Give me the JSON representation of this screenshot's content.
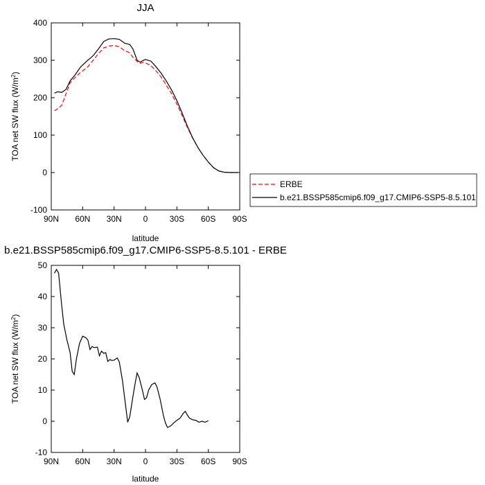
{
  "chart_data": [
    {
      "type": "line",
      "title": "JJA",
      "xlabel": "latitude",
      "ylabel": "TOA net SW flux (W/m",
      "ylabel_sup": "2",
      "ylabel_tail": ")",
      "xlim": [
        90,
        -90
      ],
      "ylim": [
        -100,
        400
      ],
      "xticks": [
        90,
        60,
        30,
        0,
        -30,
        -60,
        -90
      ],
      "xtick_labels": [
        "90N",
        "60N",
        "30N",
        "0",
        "30S",
        "60S",
        "90S"
      ],
      "yticks": [
        -100,
        0,
        100,
        200,
        300,
        400
      ],
      "ytick_labels": [
        "-100",
        "0",
        "100",
        "200",
        "300",
        "400"
      ],
      "grid": false,
      "legend_position": "right",
      "series": [
        {
          "name": "ERBE",
          "color": "#ff0000",
          "dash": "dashed",
          "points": [
            [
              87,
              165
            ],
            [
              84,
              170
            ],
            [
              80,
              180
            ],
            [
              76,
              210
            ],
            [
              72,
              240
            ],
            [
              67,
              255
            ],
            [
              62,
              268
            ],
            [
              56,
              280
            ],
            [
              50,
              300
            ],
            [
              45,
              318
            ],
            [
              40,
              333
            ],
            [
              35,
              338
            ],
            [
              30,
              340
            ],
            [
              25,
              336
            ],
            [
              20,
              326
            ],
            [
              15,
              320
            ],
            [
              12,
              308
            ],
            [
              8,
              297
            ],
            [
              5,
              292
            ],
            [
              2,
              295
            ],
            [
              0,
              293
            ],
            [
              -5,
              286
            ],
            [
              -10,
              272
            ],
            [
              -15,
              255
            ],
            [
              -20,
              233
            ],
            [
              -25,
              210
            ],
            [
              -30,
              183
            ],
            [
              -35,
              152
            ],
            [
              -40,
              121
            ],
            [
              -45,
              92
            ],
            [
              -50,
              67
            ],
            [
              -55,
              46
            ],
            [
              -60,
              28
            ],
            [
              -65,
              13
            ],
            [
              -70,
              4
            ],
            [
              -75,
              1
            ],
            [
              -80,
              0
            ],
            [
              -85,
              0
            ],
            [
              -88,
              0
            ]
          ]
        },
        {
          "name": "b.e21.BSSP585cmip6.f09_g17.CMIP6-SSP5-8.5.101",
          "color": "#000000",
          "dash": "solid",
          "points": [
            [
              87,
              212
            ],
            [
              84,
              216
            ],
            [
              80,
              214
            ],
            [
              76,
              222
            ],
            [
              72,
              245
            ],
            [
              67,
              262
            ],
            [
              62,
              282
            ],
            [
              56,
              298
            ],
            [
              50,
              312
            ],
            [
              45,
              330
            ],
            [
              40,
              350
            ],
            [
              35,
              357
            ],
            [
              30,
              358
            ],
            [
              25,
              356
            ],
            [
              20,
              346
            ],
            [
              15,
              342
            ],
            [
              12,
              330
            ],
            [
              8,
              300
            ],
            [
              5,
              295
            ],
            [
              2,
              300
            ],
            [
              0,
              302
            ],
            [
              -5,
              298
            ],
            [
              -10,
              283
            ],
            [
              -15,
              265
            ],
            [
              -20,
              244
            ],
            [
              -25,
              220
            ],
            [
              -30,
              192
            ],
            [
              -35,
              159
            ],
            [
              -40,
              124
            ],
            [
              -45,
              93
            ],
            [
              -50,
              67
            ],
            [
              -55,
              46
            ],
            [
              -60,
              28
            ],
            [
              -65,
              13
            ],
            [
              -70,
              4
            ],
            [
              -75,
              1
            ],
            [
              -80,
              0
            ],
            [
              -85,
              0
            ],
            [
              -88,
              0
            ]
          ]
        }
      ]
    },
    {
      "type": "line",
      "title": "b.e21.BSSP585cmip6.f09_g17.CMIP6-SSP5-8.5.101 - ERBE",
      "xlabel": "latitude",
      "ylabel": "TOA net SW flux (W/m",
      "ylabel_sup": "2",
      "ylabel_tail": ")",
      "xlim": [
        90,
        -90
      ],
      "ylim": [
        -10,
        50
      ],
      "xticks": [
        90,
        60,
        30,
        0,
        -30,
        -60,
        -90
      ],
      "xtick_labels": [
        "90N",
        "60N",
        "30N",
        "0",
        "30S",
        "60S",
        "90S"
      ],
      "yticks": [
        -10,
        0,
        10,
        20,
        30,
        40,
        50
      ],
      "ytick_labels": [
        "-10",
        "0",
        "10",
        "20",
        "30",
        "40",
        "50"
      ],
      "grid": false,
      "series": [
        {
          "color": "#000000",
          "dash": "solid",
          "points": [
            [
              87,
              47.5
            ],
            [
              85,
              48.7
            ],
            [
              83,
              47.5
            ],
            [
              80,
              37
            ],
            [
              78,
              31
            ],
            [
              75,
              26
            ],
            [
              72,
              22
            ],
            [
              70,
              16
            ],
            [
              68,
              15
            ],
            [
              66,
              20
            ],
            [
              63,
              25
            ],
            [
              60,
              27.3
            ],
            [
              57,
              26.8
            ],
            [
              55,
              26
            ],
            [
              53,
              23
            ],
            [
              51,
              24
            ],
            [
              49,
              23.6
            ],
            [
              46,
              23.8
            ],
            [
              44,
              21
            ],
            [
              42,
              22.5
            ],
            [
              40,
              21.8
            ],
            [
              38,
              22
            ],
            [
              36,
              19.2
            ],
            [
              34,
              19.8
            ],
            [
              32,
              19.5
            ],
            [
              30,
              19.6
            ],
            [
              27,
              20.3
            ],
            [
              25,
              19
            ],
            [
              22,
              13
            ],
            [
              19,
              5
            ],
            [
              17,
              -0.3
            ],
            [
              15,
              1.5
            ],
            [
              12,
              8
            ],
            [
              10,
              12
            ],
            [
              8,
              15.5
            ],
            [
              6,
              14
            ],
            [
              3,
              10
            ],
            [
              1,
              7
            ],
            [
              -1,
              7.5
            ],
            [
              -3,
              10
            ],
            [
              -6,
              11.8
            ],
            [
              -9,
              12.3
            ],
            [
              -11,
              11
            ],
            [
              -14,
              7
            ],
            [
              -17,
              2
            ],
            [
              -19,
              -0.5
            ],
            [
              -21,
              -2
            ],
            [
              -24,
              -1.5
            ],
            [
              -27,
              -0.5
            ],
            [
              -30,
              0.3
            ],
            [
              -33,
              1
            ],
            [
              -36,
              2.5
            ],
            [
              -38,
              3.2
            ],
            [
              -40,
              2
            ],
            [
              -42,
              1
            ],
            [
              -45,
              0.5
            ],
            [
              -48,
              0.3
            ],
            [
              -51,
              -0.3
            ],
            [
              -54,
              0
            ],
            [
              -57,
              -0.3
            ],
            [
              -60,
              0.2
            ]
          ]
        }
      ]
    }
  ]
}
